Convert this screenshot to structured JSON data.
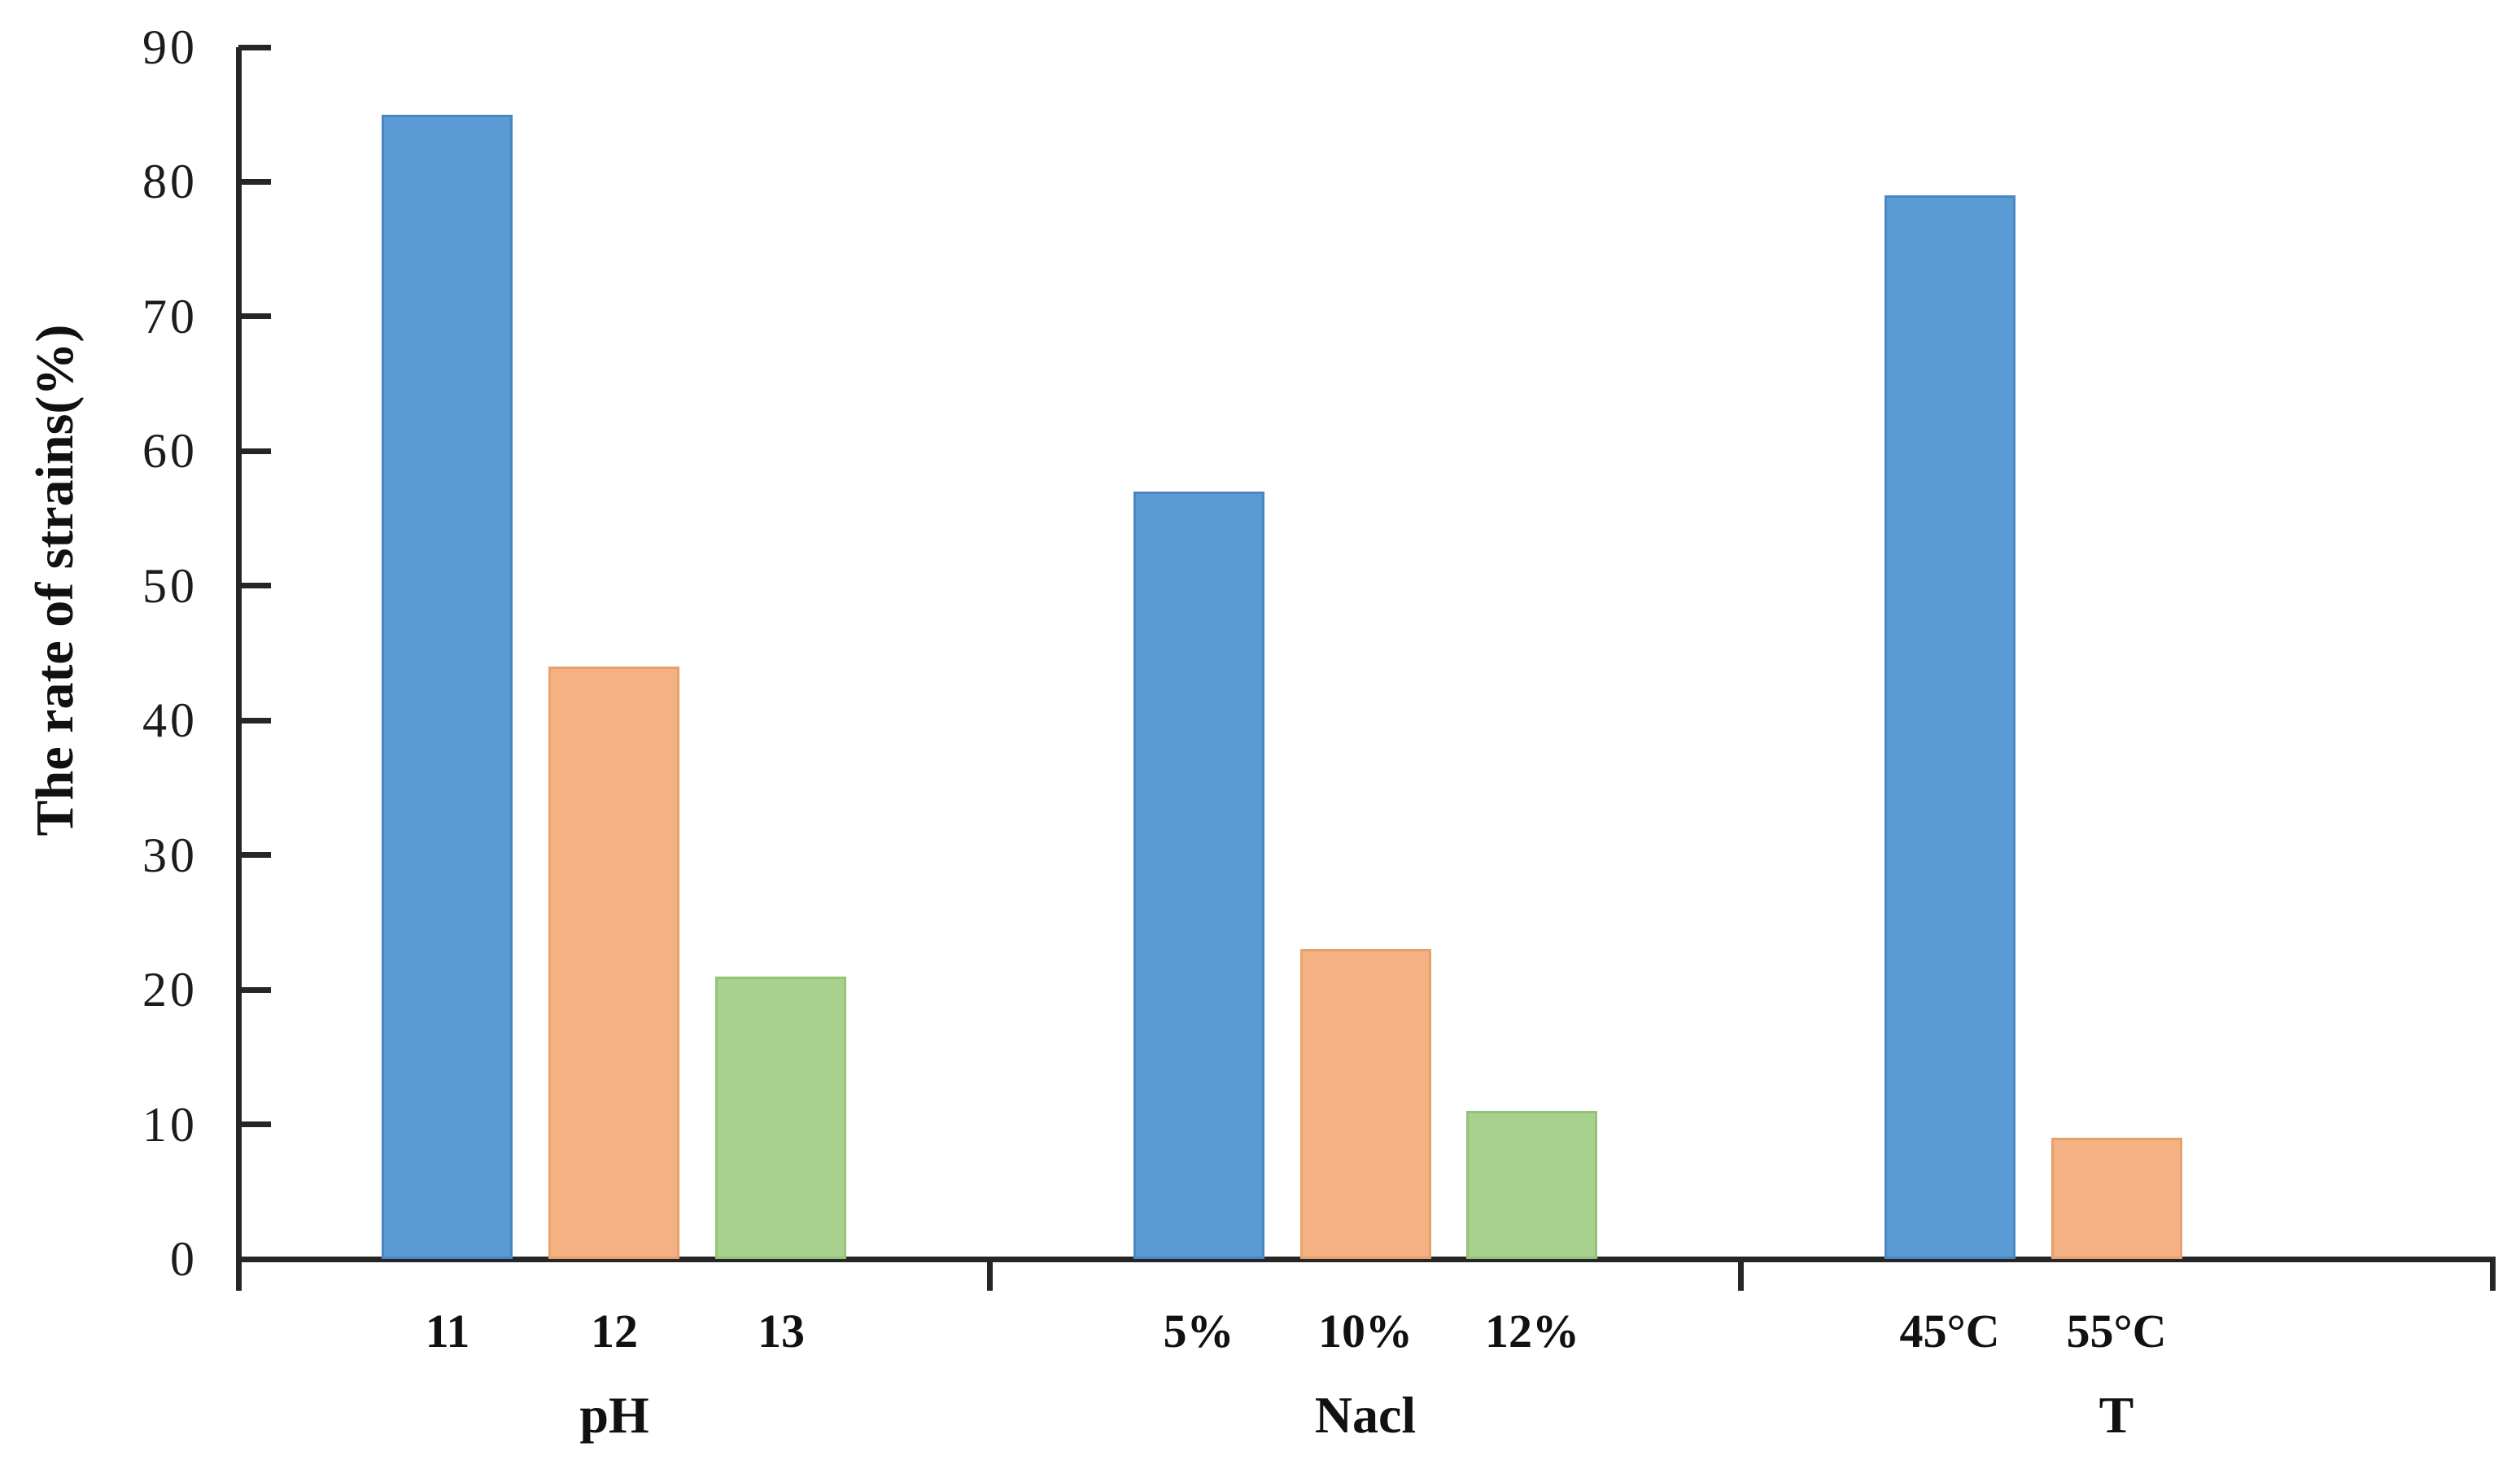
{
  "chart_data": {
    "type": "bar",
    "title": "",
    "ylabel": "The rate of strains(%)",
    "xlabel": "",
    "ylim": [
      0,
      90
    ],
    "yticks": [
      0,
      10,
      20,
      30,
      40,
      50,
      60,
      70,
      80,
      90
    ],
    "grid": false,
    "legend": "none",
    "groups": [
      {
        "label": "pH",
        "categories": [
          "11",
          "12",
          "13"
        ],
        "values": [
          85,
          44,
          21
        ]
      },
      {
        "label": "Nacl",
        "categories": [
          "5%",
          "10%",
          "12%"
        ],
        "values": [
          57,
          23,
          11
        ]
      },
      {
        "label": "T",
        "categories": [
          "45°C",
          "55°C"
        ],
        "values": [
          79,
          9
        ]
      }
    ],
    "slot_colors": [
      {
        "fill": "#5b9bd5",
        "border": "#4a86c0"
      },
      {
        "fill": "#f4b183",
        "border": "#e9a06b"
      },
      {
        "fill": "#a9d18e",
        "border": "#94c277"
      }
    ],
    "axis_color": "#262626",
    "text_color": "#1c1c1c"
  }
}
